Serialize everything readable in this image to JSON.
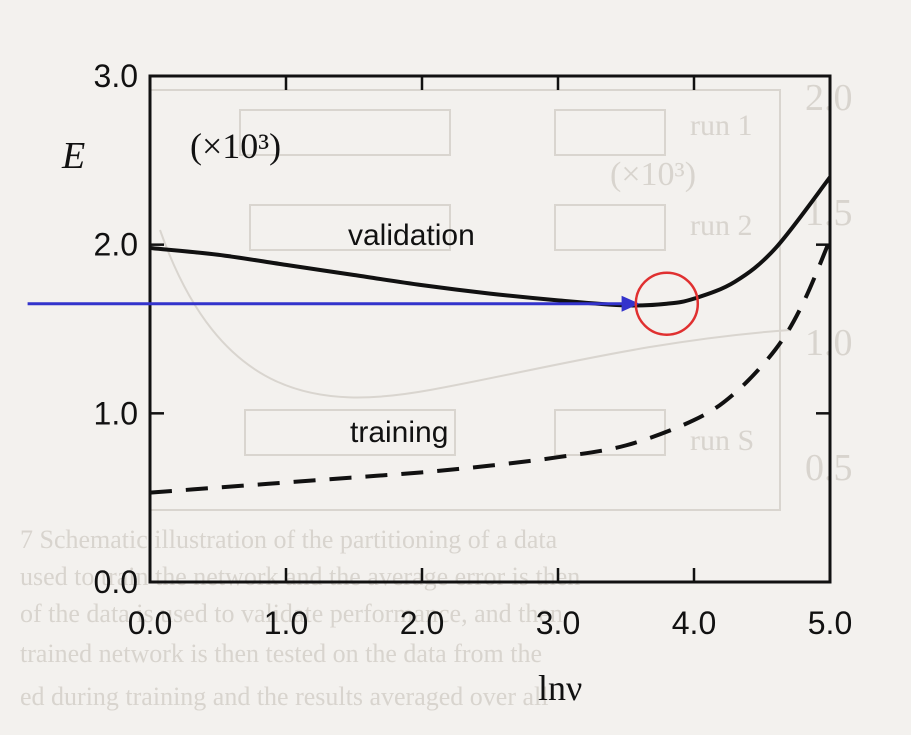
{
  "chart_data": {
    "type": "line",
    "ylabel": "E",
    "xlabel": "lnν",
    "ylim": [
      0,
      3
    ],
    "xlim": [
      0,
      5
    ],
    "y_multiplier": "(×10³)",
    "xticks": [
      "0.0",
      "1.0",
      "2.0",
      "3.0",
      "4.0",
      "5.0"
    ],
    "yticks": [
      "0.0",
      "1.0",
      "2.0",
      "3.0"
    ],
    "grid": false,
    "series": [
      {
        "name": "validation",
        "style": "solid",
        "x": [
          0.0,
          0.5,
          1.0,
          1.5,
          2.0,
          2.5,
          3.0,
          3.5,
          3.8,
          4.0,
          4.3,
          4.6,
          5.0
        ],
        "y": [
          1.98,
          1.94,
          1.88,
          1.82,
          1.76,
          1.71,
          1.67,
          1.64,
          1.65,
          1.68,
          1.78,
          1.98,
          2.4
        ]
      },
      {
        "name": "training",
        "style": "dashed",
        "x": [
          0.0,
          0.5,
          1.0,
          1.5,
          2.0,
          2.5,
          3.0,
          3.5,
          4.0,
          4.3,
          4.6,
          4.8,
          5.0
        ],
        "y": [
          0.53,
          0.56,
          0.59,
          0.62,
          0.65,
          0.69,
          0.74,
          0.81,
          0.96,
          1.12,
          1.38,
          1.65,
          2.03
        ]
      }
    ],
    "annotations": {
      "highlight": {
        "x": 3.8,
        "y": 1.65,
        "shape": "circle",
        "color": "#e03030"
      },
      "arrow": {
        "from_x": -0.9,
        "to_x": 3.6,
        "y": 1.65,
        "color": "#3333cc"
      }
    }
  },
  "colors": {
    "background": "#f3f1ee",
    "ink": "#111111",
    "arrow": "#3333cc",
    "circle": "#e03030"
  }
}
